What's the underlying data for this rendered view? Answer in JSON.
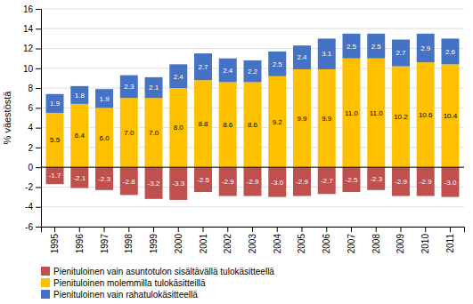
{
  "chart_data": {
    "type": "bar",
    "stacked": true,
    "data_labels": true,
    "grid": true,
    "legend": "bottom",
    "ylabel": "% väestöstä",
    "categories": [
      "1995",
      "1996",
      "1997",
      "1998",
      "1999",
      "2000",
      "2001",
      "2002",
      "2003",
      "2004",
      "2005",
      "2006",
      "2007",
      "2008",
      "2009",
      "2010",
      "2011"
    ],
    "series": [
      {
        "name": "Pienituloinen vain asuntotulon sisältävällä tulokäsitteellä",
        "color": "#c0504d",
        "values": [
          -1.7,
          -2.1,
          -2.3,
          -2.8,
          -3.2,
          -3.3,
          -2.5,
          -2.9,
          -2.9,
          -3.0,
          -2.9,
          -2.7,
          -2.5,
          -2.3,
          -2.9,
          -2.9,
          -3.0
        ],
        "value_labels": [
          "-1.7",
          "-2.1",
          "-2.3",
          "-2.8",
          "-3.2",
          "-3.3",
          "-2.5",
          "-2.9",
          "-2.9",
          "-3.0",
          "-2.9",
          "-2.7",
          "-2.5",
          "-2.3",
          "-2.9",
          "-2.9",
          "-3.0"
        ]
      },
      {
        "name": "Pienituloinen molemmilla tulokäsitteillä",
        "color": "#ffc000",
        "values": [
          5.5,
          6.4,
          6.0,
          7.0,
          7.0,
          8.0,
          8.8,
          8.6,
          8.6,
          9.2,
          9.9,
          9.9,
          11.0,
          11.0,
          10.2,
          10.6,
          10.4
        ],
        "value_labels": [
          "5.5",
          "6.4",
          "6.0",
          "7.0",
          "7.0",
          "8.0",
          "8.8",
          "8.6",
          "8.6",
          "9.2",
          "9.9",
          "9.9",
          "11.0",
          "11.0",
          "10.2",
          "10.6",
          "10.4"
        ]
      },
      {
        "name": "Pienituloinen vain rahatulokäsitteellä",
        "color": "#4472c4",
        "values": [
          1.9,
          1.8,
          1.9,
          2.3,
          2.1,
          2.4,
          2.7,
          2.4,
          2.2,
          2.5,
          2.4,
          3.1,
          2.5,
          2.5,
          2.7,
          2.9,
          2.6
        ]
      }
    ],
    "ylim": [
      -6,
      16
    ],
    "yticks": [
      -6,
      -4,
      -2,
      0,
      2,
      4,
      6,
      8,
      10,
      12,
      14,
      16
    ]
  }
}
